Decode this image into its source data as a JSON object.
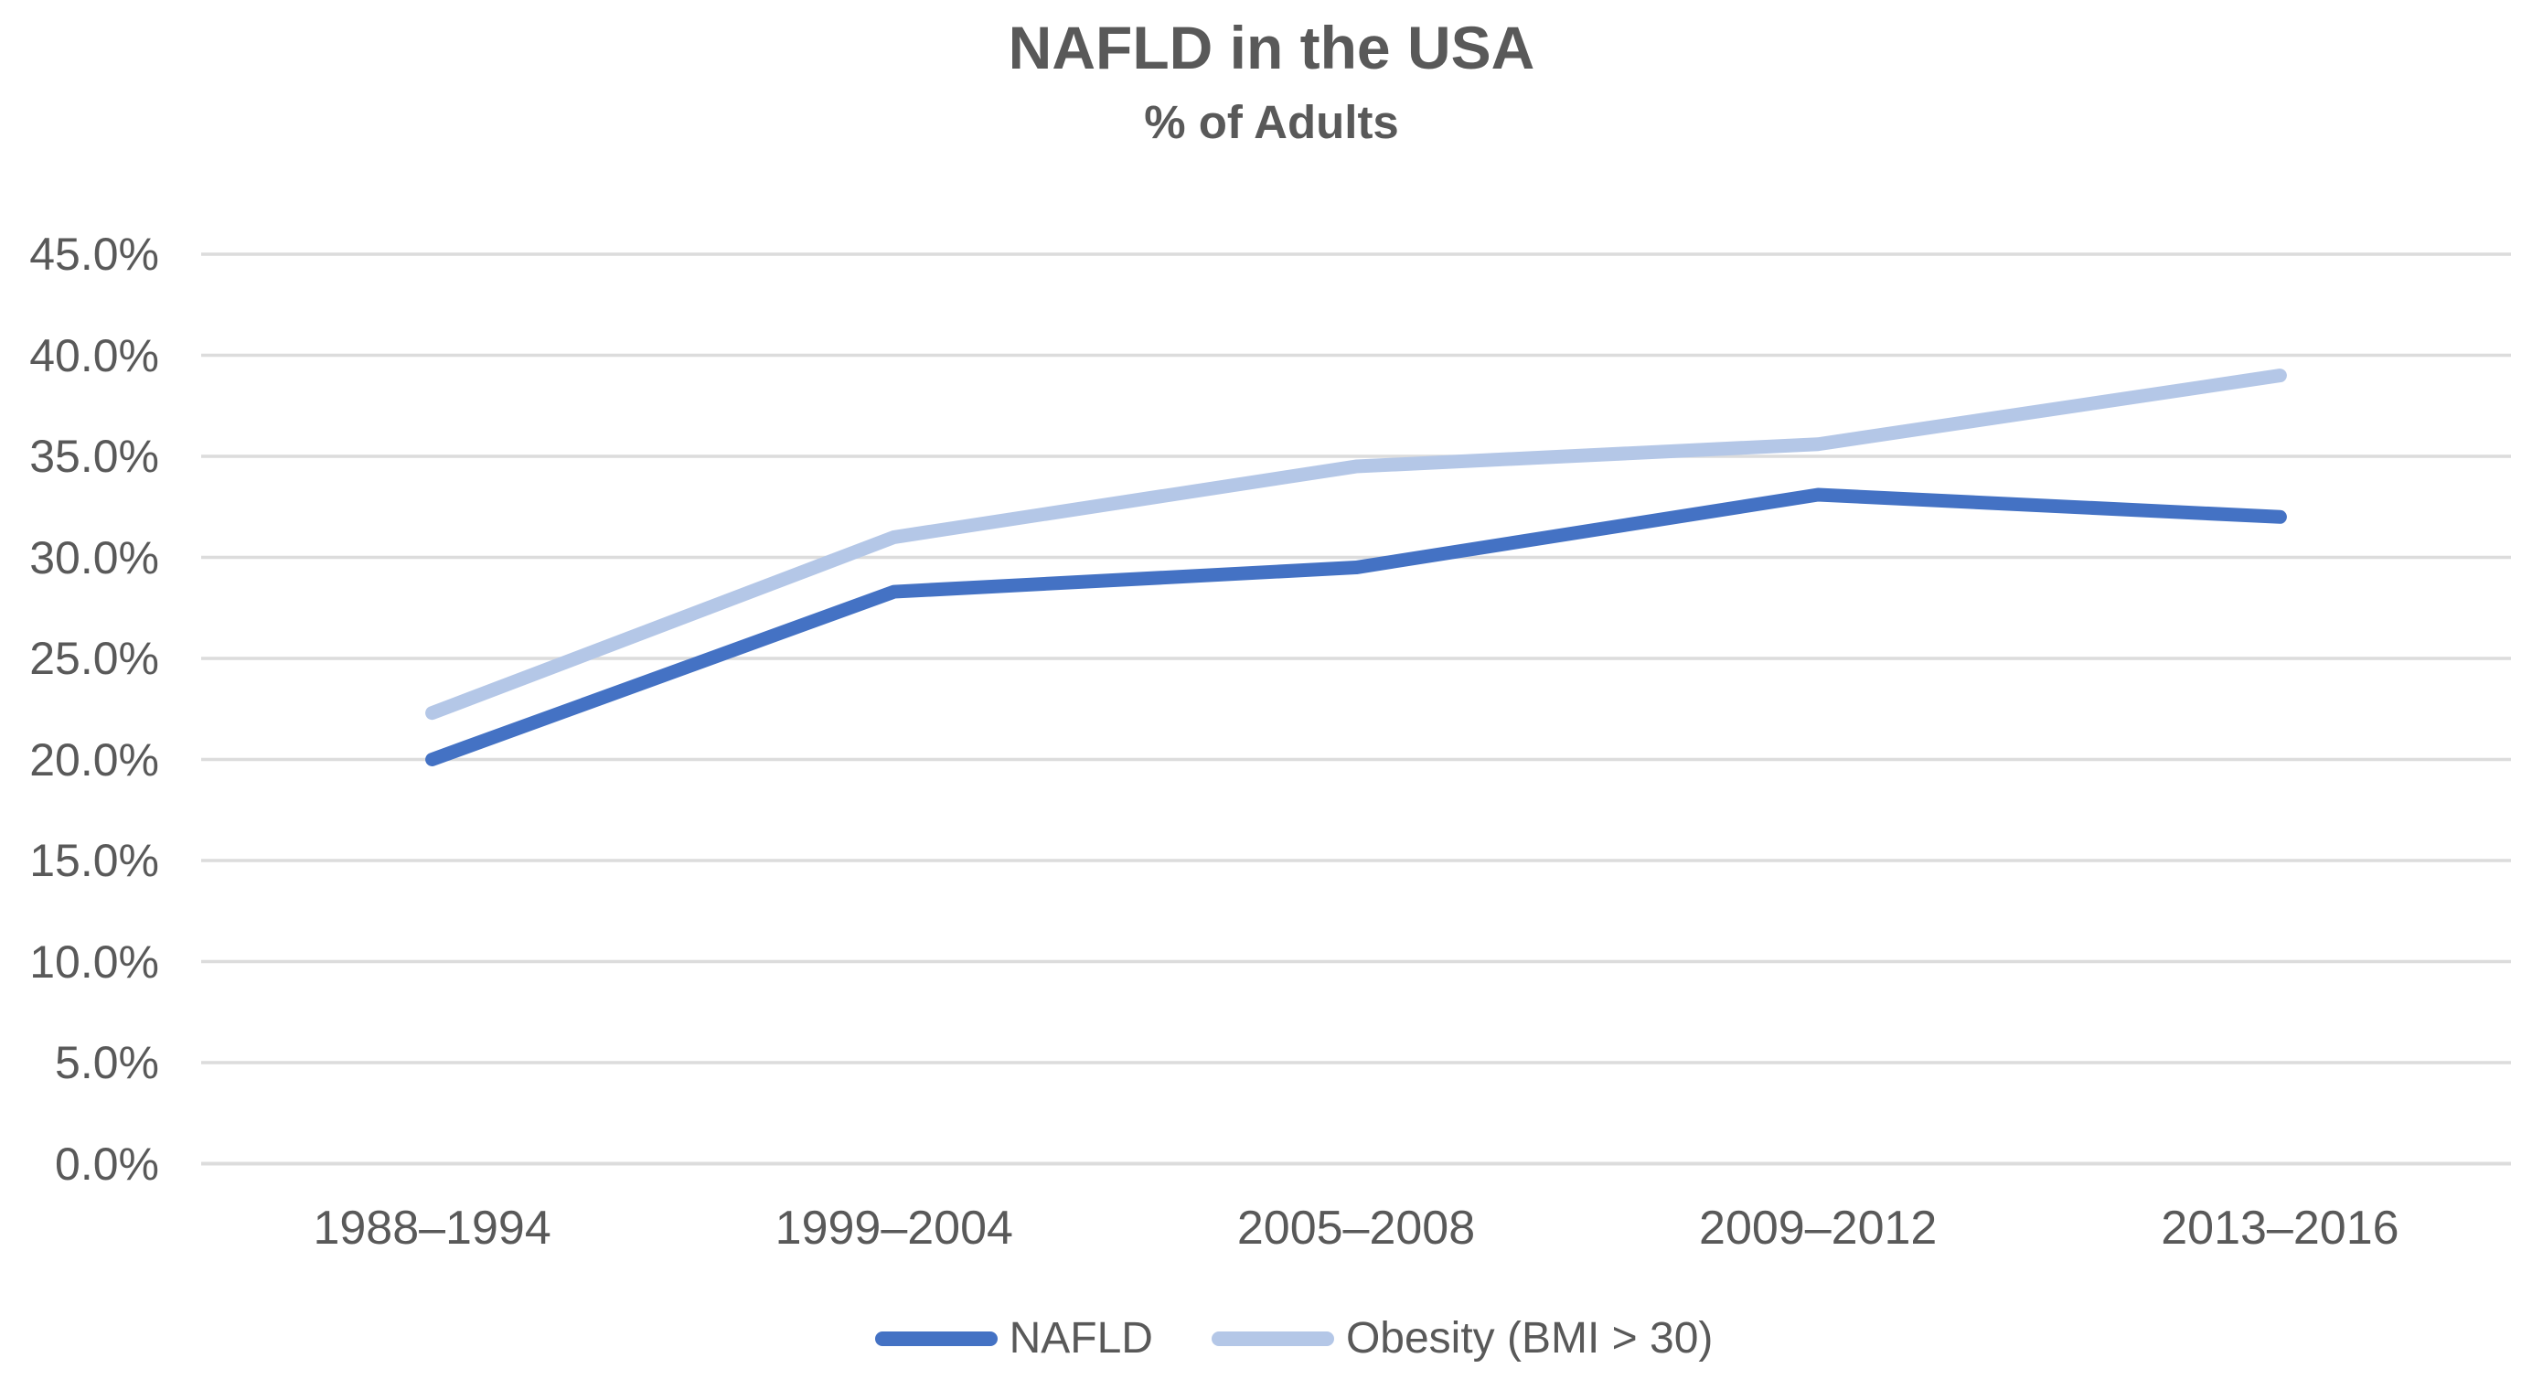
{
  "title": "NAFLD in the USA",
  "subtitle": "% of Adults",
  "colors": {
    "text": "#595959",
    "gridline": "#DCDCDC",
    "nafld_line": "#4472C4",
    "obesity_line": "#B4C7E7",
    "background": "#FFFFFF"
  },
  "legend": {
    "items": [
      {
        "label": "NAFLD",
        "color": "#4472C4"
      },
      {
        "label": "Obesity (BMI > 30)",
        "color": "#B4C7E7"
      }
    ]
  },
  "chart_data": {
    "type": "line",
    "title": "NAFLD in the USA",
    "subtitle": "% of Adults",
    "xlabel": "",
    "ylabel": "",
    "categories": [
      "1988–1994",
      "1999–2004",
      "2005–2008",
      "2009–2012",
      "2013–2016"
    ],
    "series": [
      {
        "name": "NAFLD",
        "color": "#4472C4",
        "values": [
          20.0,
          28.3,
          29.5,
          33.1,
          32.0
        ]
      },
      {
        "name": "Obesity (BMI > 30)",
        "color": "#B4C7E7",
        "values": [
          22.3,
          31.0,
          34.5,
          35.6,
          39.0
        ]
      }
    ],
    "ylim": [
      0,
      45
    ],
    "ytick_step": 5,
    "ytick_values": [
      0,
      5,
      10,
      15,
      20,
      25,
      30,
      35,
      40,
      45
    ],
    "ytick_labels": [
      "0.0%",
      "5.0%",
      "10.0%",
      "15.0%",
      "20.0%",
      "25.0%",
      "30.0%",
      "35.0%",
      "40.0%",
      "45.0%"
    ],
    "grid": "horizontal",
    "legend_position": "bottom"
  }
}
